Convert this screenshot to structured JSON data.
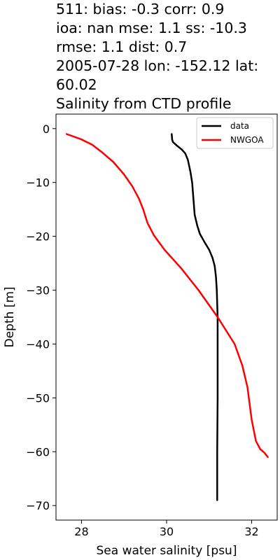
{
  "title_lines": [
    "511: bias: -0.3  corr: 0.9",
    "ioa: nan  mse: 1.1  ss: -10.3",
    "rmse: 1.1  dist: 0.7",
    "2005-07-28 lon: -152.12 lat:",
    "60.02",
    "Salinity from CTD profile"
  ],
  "chart_data": {
    "type": "line",
    "xlabel": "Sea water salinity [psu]",
    "ylabel": "Depth [m]",
    "xlim": [
      27.4,
      32.6
    ],
    "ylim": [
      -72.7,
      2.7
    ],
    "xticks": [
      28,
      30,
      32
    ],
    "yticks": [
      0,
      -10,
      -20,
      -30,
      -40,
      -50,
      -60,
      -70
    ],
    "legend_position": "top-right",
    "series": [
      {
        "name": "data",
        "color": "#000000",
        "points": [
          [
            30.12,
            -1
          ],
          [
            30.13,
            -2
          ],
          [
            30.15,
            -2.5
          ],
          [
            30.25,
            -3.2
          ],
          [
            30.36,
            -3.9
          ],
          [
            30.44,
            -4.6
          ],
          [
            30.5,
            -5.8
          ],
          [
            30.56,
            -8
          ],
          [
            30.6,
            -10
          ],
          [
            30.64,
            -14
          ],
          [
            30.66,
            -16
          ],
          [
            30.72,
            -18
          ],
          [
            30.78,
            -19.5
          ],
          [
            30.9,
            -21.2
          ],
          [
            31.0,
            -22.5
          ],
          [
            31.08,
            -24
          ],
          [
            31.13,
            -25.5
          ],
          [
            31.16,
            -27.5
          ],
          [
            31.18,
            -30
          ],
          [
            31.2,
            -35
          ],
          [
            31.2,
            -40
          ],
          [
            31.2,
            -50
          ],
          [
            31.19,
            -60
          ],
          [
            31.19,
            -69
          ]
        ]
      },
      {
        "name": "NWGOA",
        "color": "#ff0000",
        "points": [
          [
            27.65,
            -1
          ],
          [
            28.0,
            -2
          ],
          [
            28.25,
            -3
          ],
          [
            28.5,
            -4.5
          ],
          [
            28.75,
            -6.2
          ],
          [
            29.0,
            -8.5
          ],
          [
            29.2,
            -10.8
          ],
          [
            29.35,
            -13
          ],
          [
            29.45,
            -15
          ],
          [
            29.55,
            -17.5
          ],
          [
            29.7,
            -19.8
          ],
          [
            29.95,
            -22.5
          ],
          [
            30.35,
            -26
          ],
          [
            30.75,
            -30
          ],
          [
            31.2,
            -35
          ],
          [
            31.6,
            -40
          ],
          [
            31.78,
            -44
          ],
          [
            31.9,
            -48
          ],
          [
            32.0,
            -54
          ],
          [
            32.1,
            -58
          ],
          [
            32.2,
            -59.5
          ],
          [
            32.3,
            -60.2
          ],
          [
            32.38,
            -61
          ]
        ]
      }
    ]
  }
}
